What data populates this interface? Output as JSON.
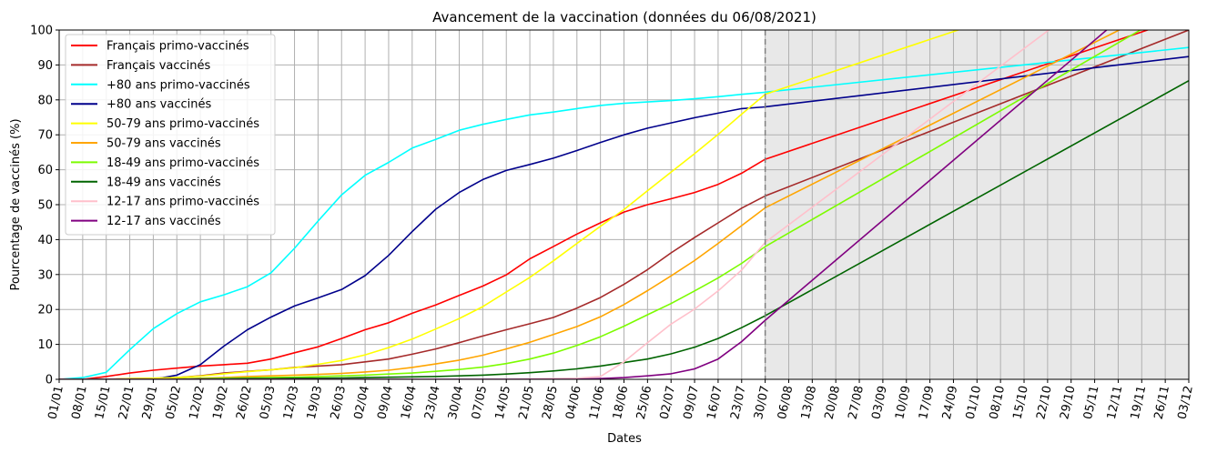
{
  "chart_data": {
    "type": "line",
    "title": "Avancement de la vaccination (données du 06/08/2021)",
    "xlabel": "Dates",
    "ylabel": "Pourcentage de vaccinés (%)",
    "ylim": [
      0,
      100
    ],
    "yticks": [
      0,
      10,
      20,
      30,
      40,
      50,
      60,
      70,
      80,
      90,
      100
    ],
    "xtick_labels": [
      "01/01",
      "08/01",
      "15/01",
      "22/01",
      "29/01",
      "05/02",
      "12/02",
      "19/02",
      "26/02",
      "05/03",
      "12/03",
      "19/03",
      "26/03",
      "02/04",
      "09/04",
      "16/04",
      "23/04",
      "30/04",
      "07/05",
      "14/05",
      "21/05",
      "28/05",
      "04/06",
      "11/06",
      "18/06",
      "25/06",
      "02/07",
      "09/07",
      "16/07",
      "23/07",
      "30/07",
      "06/08",
      "13/08",
      "20/08",
      "27/08",
      "03/09",
      "10/09",
      "17/09",
      "24/09",
      "01/10",
      "08/10",
      "15/10",
      "22/10",
      "29/10",
      "05/11",
      "12/11",
      "19/11",
      "26/11",
      "03/12"
    ],
    "projection_start_tick": 30,
    "grid": true,
    "legend_position": "upper-left",
    "projection_shading": "#e8e8e8",
    "series": [
      {
        "name": "Français primo-vaccinés",
        "color": "#ff0000",
        "values": [
          0,
          0,
          0.8,
          1.8,
          2.6,
          3.2,
          3.8,
          4.2,
          4.6,
          5.8,
          7.6,
          9.3,
          11.7,
          14.2,
          16.2,
          18.9,
          21.3,
          24.0,
          26.7,
          29.9,
          34.5,
          38.0,
          41.6,
          44.8,
          47.9,
          50.0,
          51.7,
          53.5,
          55.8,
          59.0,
          63.0
        ],
        "projection": [
          63.0,
          104
        ]
      },
      {
        "name": "Français vaccinés",
        "color": "#a52a2a",
        "values": [
          0,
          0,
          0,
          0.2,
          0.3,
          0.5,
          1.0,
          1.8,
          2.3,
          2.7,
          3.4,
          3.8,
          4.2,
          5.0,
          5.8,
          7.2,
          8.7,
          10.5,
          12.4,
          14.2,
          15.9,
          17.7,
          20.4,
          23.4,
          27.2,
          31.4,
          36.2,
          40.6,
          44.8,
          49.0,
          52.5
        ],
        "projection": [
          52.5,
          100
        ]
      },
      {
        "name": "+80 ans primo-vaccinés",
        "color": "#00ffff",
        "values": [
          0,
          0.5,
          2.0,
          8.5,
          14.5,
          18.8,
          22.2,
          24.2,
          26.5,
          30.5,
          37.5,
          45.3,
          52.8,
          58.4,
          62.1,
          66.2,
          68.7,
          71.3,
          73.0,
          74.4,
          75.7,
          76.5,
          77.5,
          78.4,
          79.0,
          79.4,
          79.8,
          80.3,
          80.9,
          81.6,
          82.2
        ],
        "projection": [
          82.2,
          95
        ]
      },
      {
        "name": "+80 ans vaccinés",
        "color": "#00008b",
        "values": [
          0,
          0,
          0,
          0,
          0,
          1.2,
          4.2,
          9.5,
          14.2,
          17.8,
          21.0,
          23.3,
          25.7,
          29.7,
          35.5,
          42.3,
          48.7,
          53.5,
          57.2,
          59.8,
          61.5,
          63.3,
          65.5,
          67.8,
          70.0,
          71.9,
          73.4,
          74.9,
          76.2,
          77.5,
          78.0
        ],
        "projection": [
          78.0,
          92.4
        ]
      },
      {
        "name": "50-79 ans primo-vaccinés",
        "color": "#ffff00",
        "values": [
          0,
          0,
          0,
          0.2,
          0.3,
          0.5,
          0.9,
          1.6,
          2.2,
          2.7,
          3.3,
          4.3,
          5.4,
          7.0,
          9.1,
          11.5,
          14.4,
          17.4,
          20.8,
          25.0,
          29.2,
          33.9,
          38.9,
          43.8,
          48.6,
          54.0,
          59.3,
          64.6,
          70.1,
          75.9,
          81.6
        ],
        "projection": [
          81.6,
          122
        ]
      },
      {
        "name": "50-79 ans vaccinés",
        "color": "#ffa500",
        "values": [
          0,
          0,
          0,
          0,
          0,
          0.1,
          0.3,
          0.5,
          0.8,
          1.0,
          1.2,
          1.4,
          1.7,
          2.1,
          2.6,
          3.4,
          4.4,
          5.5,
          6.9,
          8.7,
          10.6,
          12.8,
          15.1,
          17.9,
          21.4,
          25.4,
          29.6,
          34.0,
          38.9,
          44.0,
          49.1
        ],
        "projection": [
          49.1,
          110
        ]
      },
      {
        "name": "18-49 ans primo-vaccinés",
        "color": "#7cfc00",
        "values": [
          0,
          0,
          0,
          0,
          0,
          0.1,
          0.2,
          0.3,
          0.4,
          0.5,
          0.6,
          0.8,
          1.0,
          1.2,
          1.5,
          1.8,
          2.3,
          2.8,
          3.5,
          4.5,
          5.8,
          7.5,
          9.7,
          12.2,
          15.2,
          18.5,
          21.7,
          25.3,
          29.0,
          33.2,
          38.0
        ],
        "projection": [
          38.0,
          108
        ]
      },
      {
        "name": "18-49 ans vaccinés",
        "color": "#006400",
        "values": [
          0,
          0,
          0,
          0,
          0,
          0,
          0.1,
          0.1,
          0.2,
          0.2,
          0.3,
          0.3,
          0.4,
          0.5,
          0.6,
          0.7,
          0.8,
          1.0,
          1.2,
          1.5,
          1.9,
          2.4,
          3.0,
          3.8,
          4.8,
          5.8,
          7.3,
          9.2,
          11.7,
          14.8,
          18.2
        ],
        "projection": [
          18.2,
          85.5
        ]
      },
      {
        "name": "12-17 ans primo-vaccinés",
        "color": "#ffc0cb",
        "values": [
          0,
          0,
          0,
          0,
          0,
          0,
          0,
          0,
          0,
          0,
          0,
          0,
          0,
          0,
          0,
          0,
          0,
          0,
          0,
          0,
          0.1,
          0.2,
          0.3,
          0.8,
          5.0,
          10.5,
          15.8,
          20.1,
          25.3,
          31.3,
          39.2
        ],
        "projection": [
          39.2,
          130
        ]
      },
      {
        "name": "12-17 ans vaccinés",
        "color": "#800080",
        "values": [
          0,
          0,
          0,
          0,
          0,
          0,
          0,
          0,
          0,
          0,
          0,
          0,
          0,
          0,
          0,
          0,
          0,
          0,
          0,
          0,
          0,
          0,
          0,
          0.2,
          0.5,
          1.0,
          1.6,
          3.0,
          5.8,
          10.8,
          16.9
        ],
        "projection": [
          16.9,
          120
        ]
      }
    ]
  }
}
